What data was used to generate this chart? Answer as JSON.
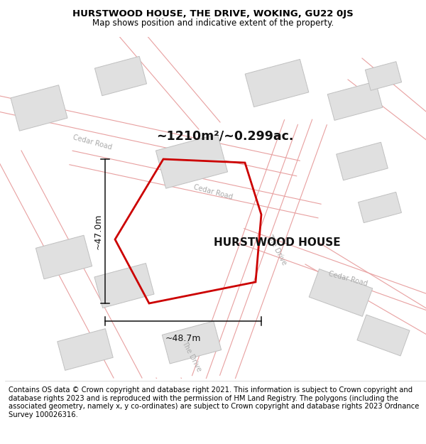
{
  "title": "HURSTWOOD HOUSE, THE DRIVE, WOKING, GU22 0JS",
  "subtitle": "Map shows position and indicative extent of the property.",
  "footer": "Contains OS data © Crown copyright and database right 2021. This information is subject to Crown copyright and database rights 2023 and is reproduced with the permission of HM Land Registry. The polygons (including the associated geometry, namely x, y co-ordinates) are subject to Crown copyright and database rights 2023 Ordnance Survey 100026316.",
  "map_bg": "#f7f6f6",
  "road_line_color": "#e8a0a0",
  "road_fill_color": "#f2e0e0",
  "building_fill": "#e0e0e0",
  "building_edge": "#c0c0c0",
  "property_color": "#cc0000",
  "measure_color": "#111111",
  "area_text": "~1210m²/~0.299ac.",
  "width_label": "~48.7m",
  "height_label": "~47.0m",
  "property_name": "HURSTWOOD HOUSE",
  "road_label_color": "#aaaaaa",
  "title_fontsize": 9.5,
  "subtitle_fontsize": 8.5,
  "footer_fontsize": 7.2
}
